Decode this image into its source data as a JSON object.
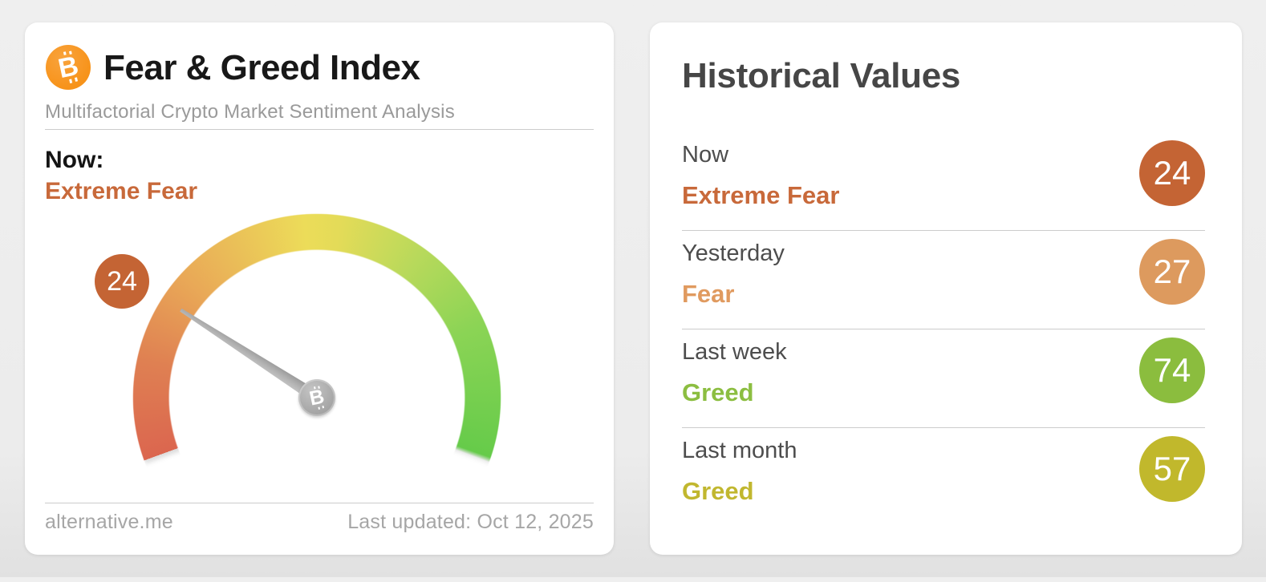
{
  "page": {
    "background_color": "#ececec"
  },
  "gauge_card": {
    "title": "Fear & Greed Index",
    "subtitle": "Multifactorial Crypto Market Sentiment Analysis",
    "now_label": "Now:",
    "bitcoin_glyph": "B",
    "footer_left": "alternative.me",
    "footer_right": "Last updated: Oct 12, 2025"
  },
  "historical_card": {
    "title": "Historical Values",
    "rows": [
      {
        "label": "Now",
        "classification": "Extreme Fear",
        "value": "24",
        "value_color": "#c8693a",
        "badge_color": "#c46434"
      },
      {
        "label": "Yesterday",
        "classification": "Fear",
        "value": "27",
        "value_color": "#e09a5f",
        "badge_color": "#dd9a5e"
      },
      {
        "label": "Last week",
        "classification": "Greed",
        "value": "74",
        "value_color": "#8cbe41",
        "badge_color": "#8bbd3e"
      },
      {
        "label": "Last month",
        "classification": "Greed",
        "value": "57",
        "value_color": "#c1b72f",
        "badge_color": "#c1b82c"
      }
    ]
  },
  "chart_data": [
    {
      "type": "gauge",
      "title": "Fear & Greed Index",
      "value": 24,
      "classification": "Extreme Fear",
      "range": [
        0,
        100
      ],
      "arc_degrees": 220,
      "arc_start_css_deg": 250,
      "needle_color": "#a9a9a9",
      "color_stops": [
        {
          "angle": 0,
          "color": "#db664f"
        },
        {
          "angle": 32,
          "color": "#df8052"
        },
        {
          "angle": 62,
          "color": "#e9a857"
        },
        {
          "angle": 106,
          "color": "#ecdc59"
        },
        {
          "angle": 118,
          "color": "#e3db58"
        },
        {
          "angle": 146,
          "color": "#b7d95b"
        },
        {
          "angle": 176,
          "color": "#8bd455"
        },
        {
          "angle": 219,
          "color": "#66cb4a"
        }
      ],
      "gap_color": "rgba(102,203,74,0)"
    },
    {
      "type": "table",
      "title": "Historical Values",
      "categories": [
        "Now",
        "Yesterday",
        "Last week",
        "Last month"
      ],
      "values": [
        24,
        27,
        74,
        57
      ],
      "classifications": [
        "Extreme Fear",
        "Fear",
        "Greed",
        "Greed"
      ]
    }
  ]
}
